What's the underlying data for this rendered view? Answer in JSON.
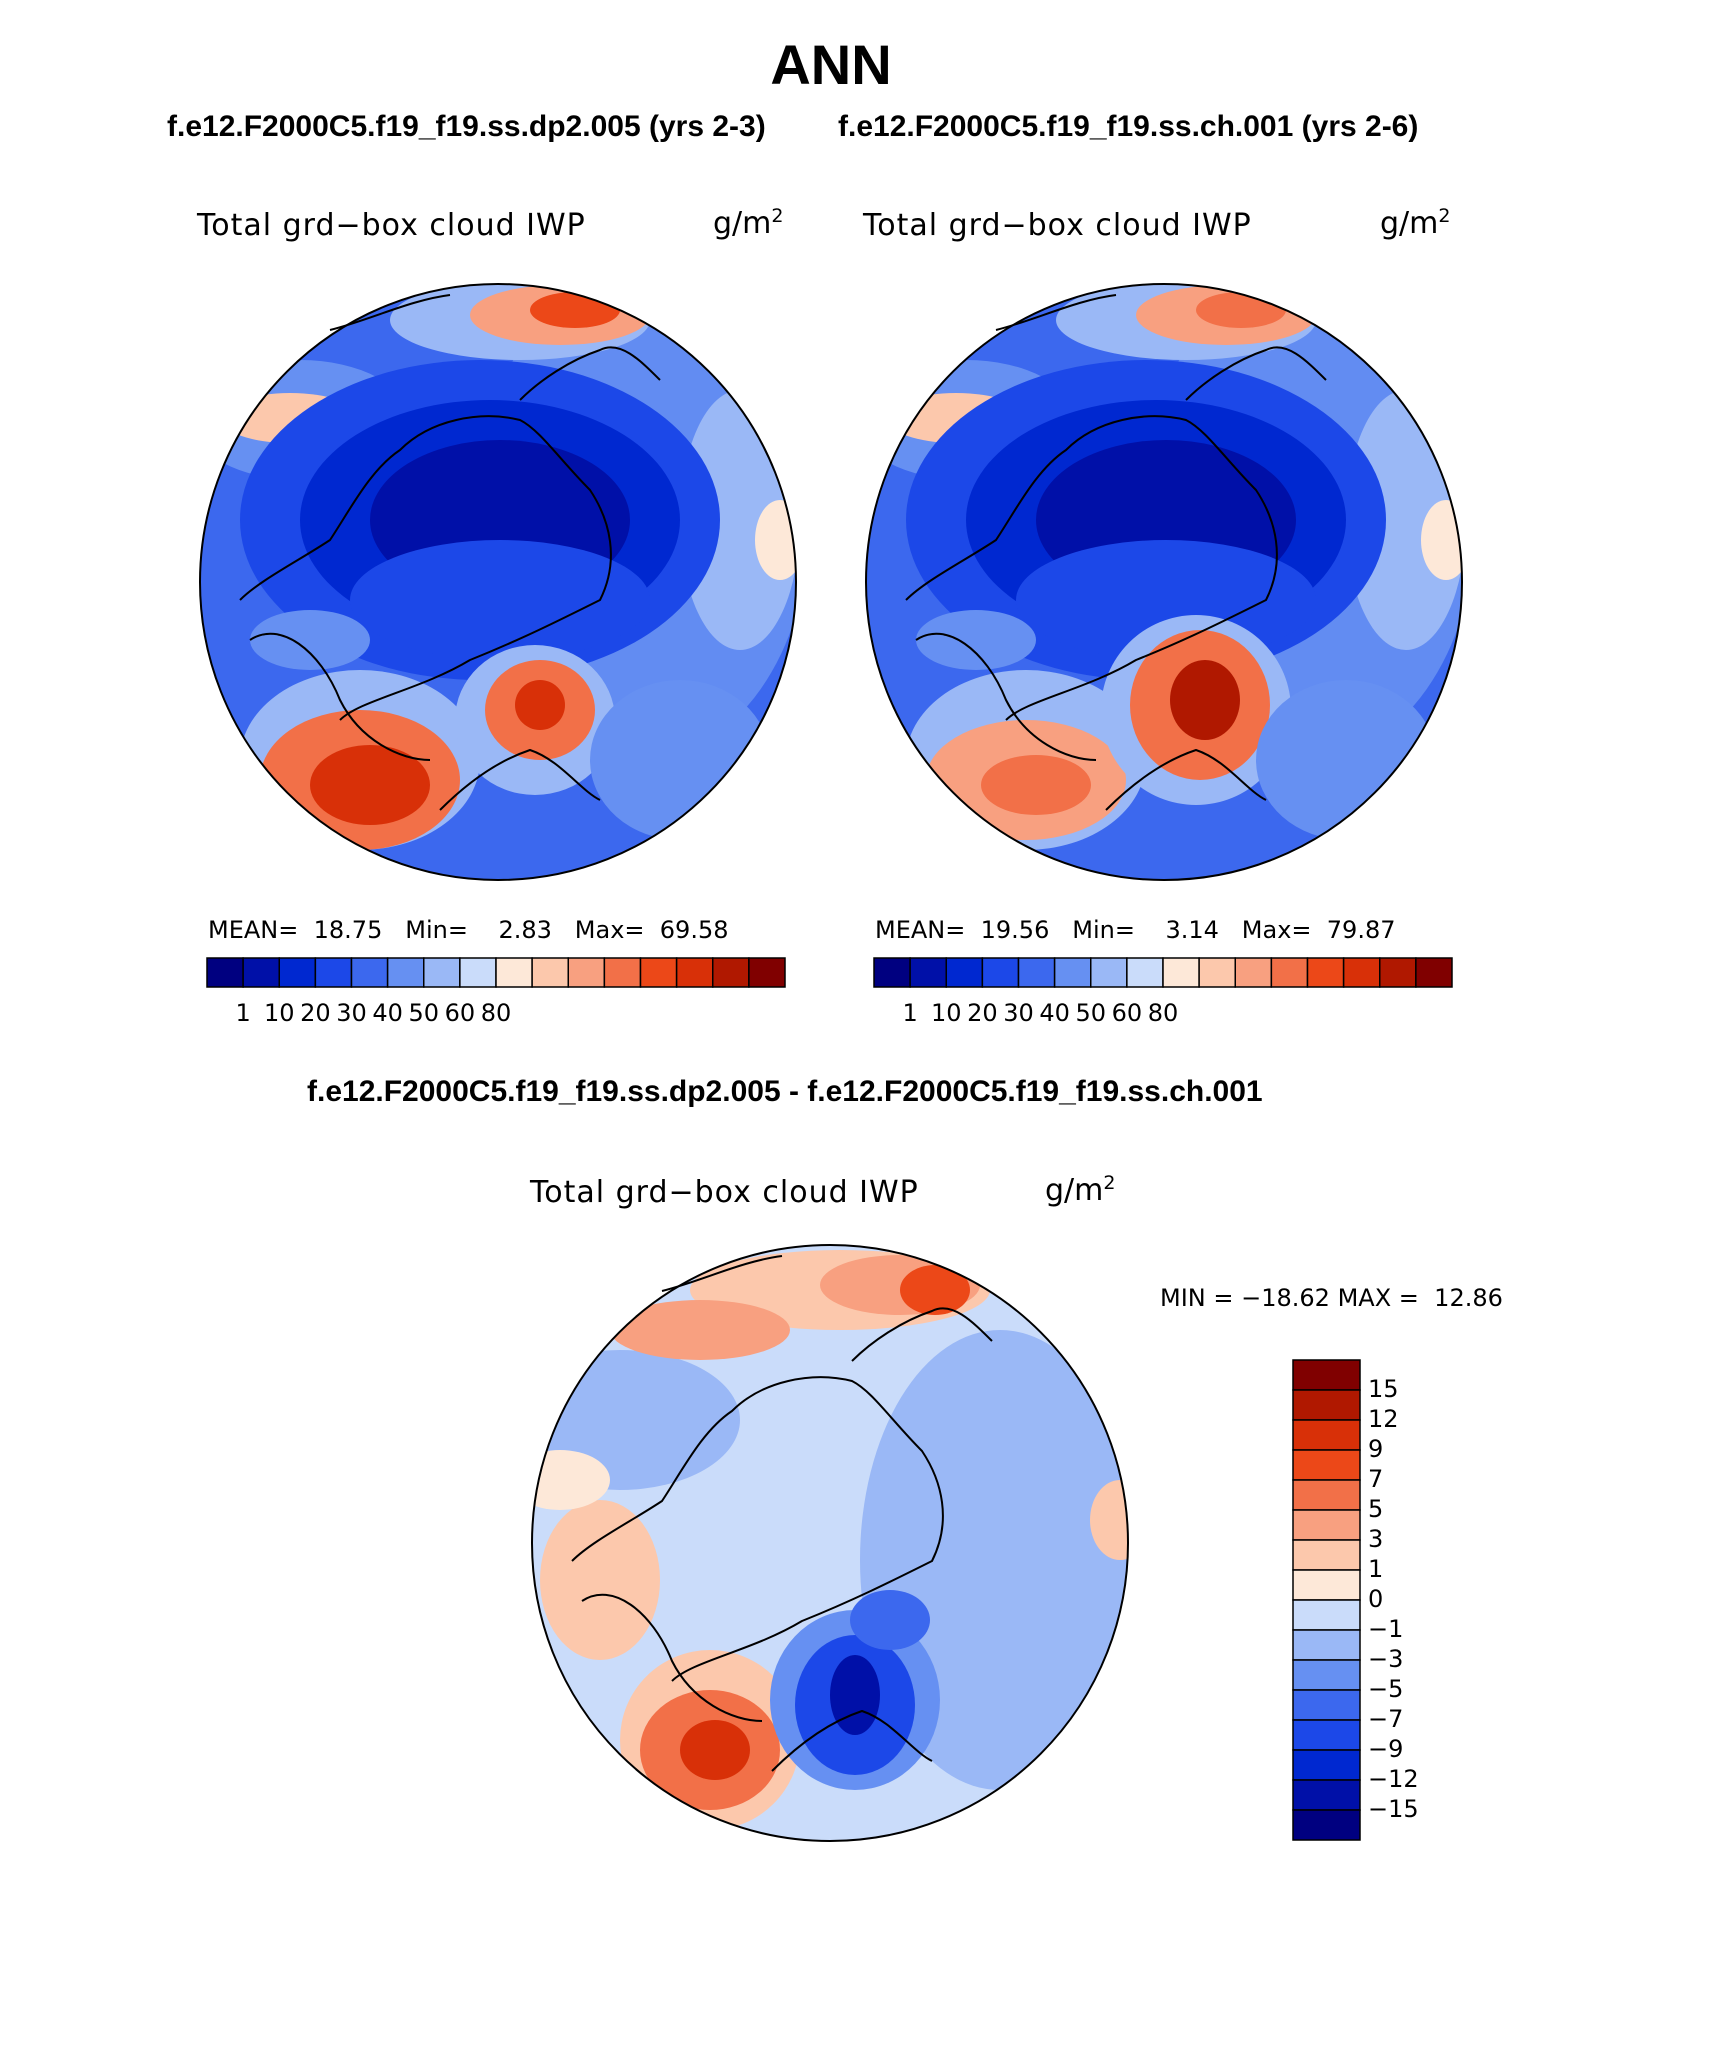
{
  "title": "ANN",
  "case_left": "f.e12.F2000C5.f19_f19.ss.dp2.005 (yrs 2-3)",
  "case_right": "f.e12.F2000C5.f19_f19.ss.ch.001 (yrs 2-6)",
  "diff_title": "f.e12.F2000C5.f19_f19.ss.dp2.005 - f.e12.F2000C5.f19_f19.ss.ch.001",
  "panels": {
    "left": {
      "variable": "Total grd−box cloud IWP",
      "units_base": "g/m",
      "units_exp": "2",
      "mean_label": "MEAN=",
      "mean": "18.75",
      "min_label": "Min=",
      "min": "2.83",
      "max_label": "Max=",
      "max": "69.58"
    },
    "right": {
      "variable": "Total grd−box cloud IWP",
      "units_base": "g/m",
      "units_exp": "2",
      "mean_label": "MEAN=",
      "mean": "19.56",
      "min_label": "Min=",
      "min": "3.14",
      "max_label": "Max=",
      "max": "79.87"
    },
    "diff": {
      "variable": "Total grd−box cloud IWP",
      "units_base": "g/m",
      "units_exp": "2",
      "min_label": "MIN =",
      "min": "−18.62",
      "max_label": "MAX =",
      "max": "12.86"
    }
  },
  "colorbar_abs": {
    "ticks": [
      "1",
      "10",
      "20",
      "30",
      "40",
      "50",
      "60",
      "80"
    ],
    "colors": [
      "#000080",
      "#0010a8",
      "#0028d0",
      "#1c48e8",
      "#3c68ee",
      "#6690f2",
      "#9ab8f6",
      "#cadcfa",
      "#fde8d8",
      "#fcc8ac",
      "#f8a080",
      "#f27048",
      "#ec4818",
      "#d83008",
      "#b01800",
      "#800000"
    ]
  },
  "colorbar_diff": {
    "ticks": [
      "15",
      "12",
      "9",
      "7",
      "5",
      "3",
      "1",
      "0",
      "−1",
      "−3",
      "−5",
      "−7",
      "−9",
      "−12",
      "−15"
    ],
    "colors": [
      "#800000",
      "#b01800",
      "#d83008",
      "#ec4818",
      "#f27048",
      "#f8a080",
      "#fcc8ac",
      "#fde8d8",
      "#cadcfa",
      "#9ab8f6",
      "#6690f2",
      "#3c68ee",
      "#1c48e8",
      "#0028d0",
      "#0010a8",
      "#000080"
    ]
  }
}
